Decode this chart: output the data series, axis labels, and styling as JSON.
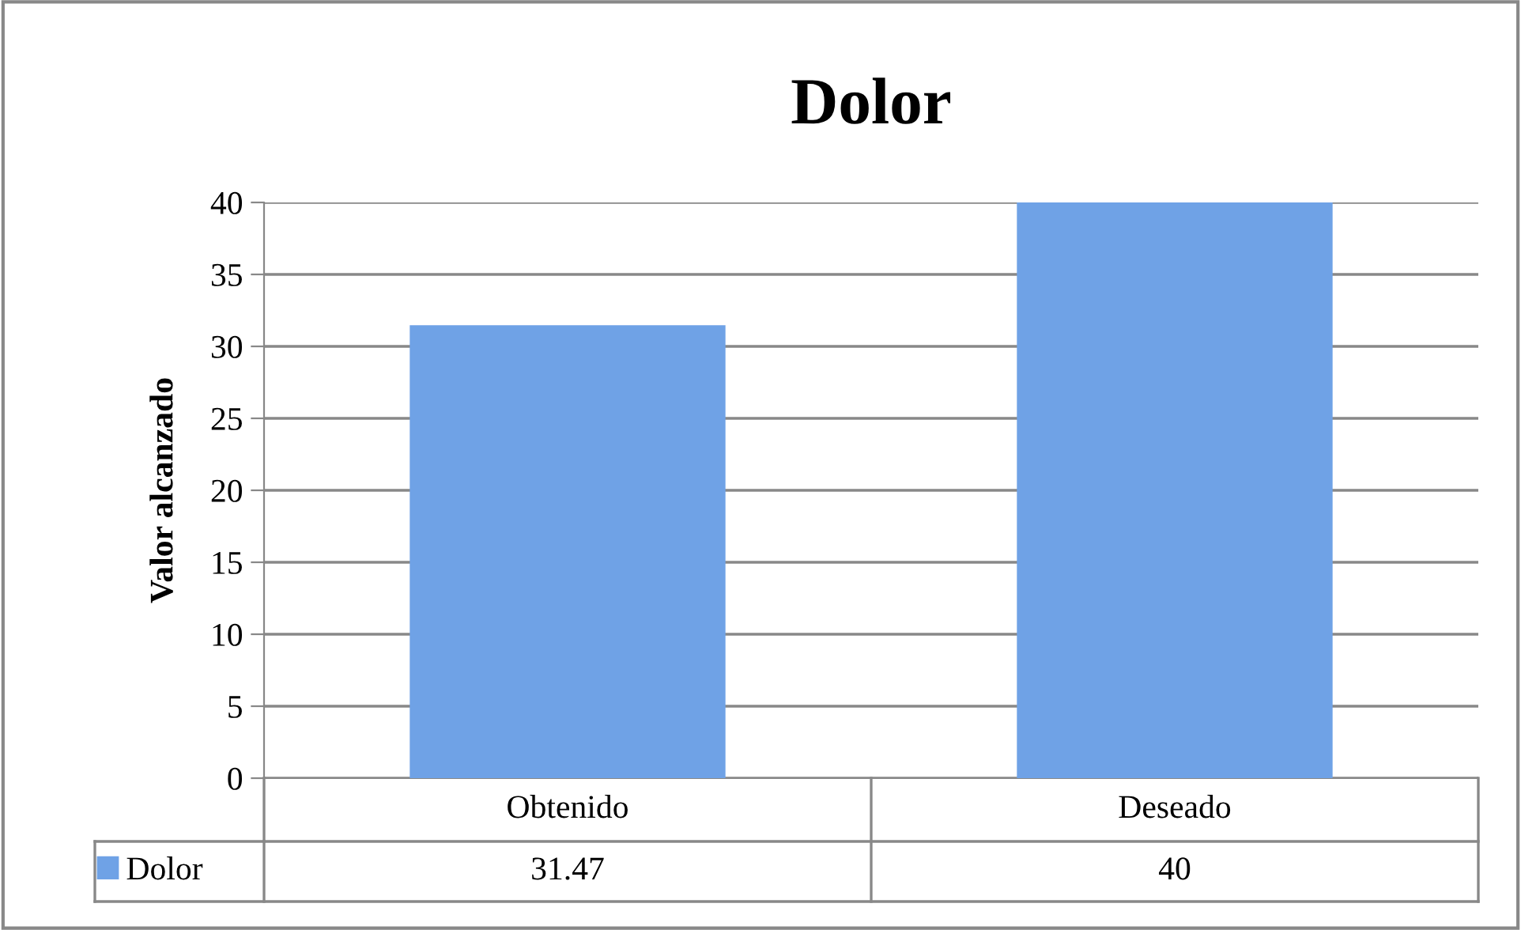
{
  "chart_data": {
    "type": "bar",
    "title": "Dolor",
    "ylabel": "Valor alcanzado",
    "categories": [
      "Obtenido",
      "Deseado"
    ],
    "series": [
      {
        "name": "Dolor",
        "color": "#6fa2e6",
        "values": [
          31.47,
          40
        ]
      }
    ],
    "ylim": [
      0,
      40
    ],
    "yticks": [
      0,
      5,
      10,
      15,
      20,
      25,
      30,
      35,
      40
    ],
    "grid": "y",
    "data_labels": true,
    "legend": "bottom left"
  }
}
